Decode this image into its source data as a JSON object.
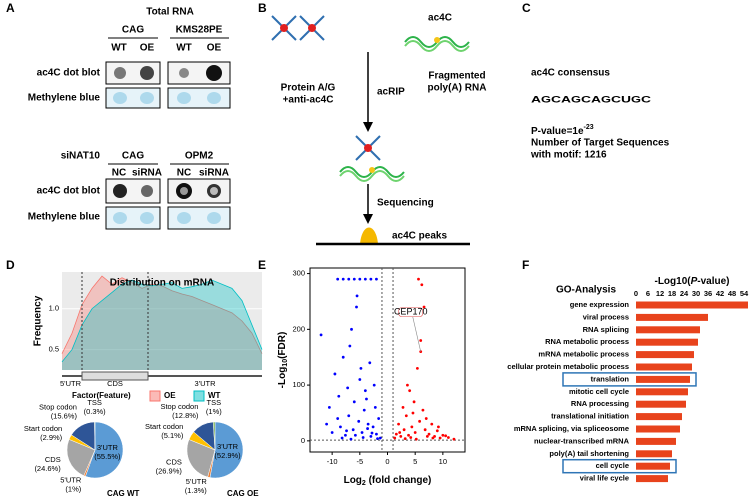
{
  "panel_labels": [
    "A",
    "B",
    "C",
    "D",
    "E",
    "F"
  ],
  "panel_a": {
    "top_title": "Total RNA",
    "groups_top": [
      "CAG",
      "KMS28PE"
    ],
    "lanes_top": [
      "WT",
      "OE",
      "WT",
      "OE"
    ],
    "rows_top": [
      "ac4C dot blot",
      "Methylene blue"
    ],
    "bottom_title": "siNAT10",
    "groups_bottom": [
      "CAG",
      "OPM2"
    ],
    "lanes_bottom": [
      "NC",
      "siRNA",
      "NC",
      "siRNA"
    ],
    "rows_bottom": [
      "ac4C dot blot",
      "Methylene blue"
    ]
  },
  "panel_b": {
    "antibody": [
      "Protein A/G",
      "+anti-ac4C"
    ],
    "modification": "ac4C",
    "rna": [
      "Fragmented",
      "poly(A) RNA"
    ],
    "step1": "acRIP",
    "step2": "Sequencing",
    "result": "ac4C peaks"
  },
  "panel_c": {
    "title": "ac4C consensus",
    "logo": [
      "A",
      "G",
      "C",
      "A",
      "G",
      "C",
      "A",
      "G",
      "C",
      "U",
      "G",
      "C"
    ],
    "p_value": "P-value=1e",
    "p_exponent": "-23",
    "count_line1": "Number of Target Sequences",
    "count_line2": "with motif: 1216"
  },
  "chart_data": [
    {
      "type": "area",
      "title": "Distribution on mRNA",
      "y_label": "Frequency",
      "legend_title": "Factor(Feature)",
      "x": [
        0,
        0.05,
        0.1,
        0.15,
        0.2,
        0.25,
        0.3,
        0.35,
        0.4,
        0.45,
        0.5,
        0.55,
        0.6,
        0.65,
        0.7,
        0.75,
        0.8,
        0.85,
        0.9,
        0.95,
        1
      ],
      "xlim": [
        0,
        1
      ],
      "ylim": [
        0.25,
        1.45
      ],
      "yticks": [
        0.5,
        {
          "value": 1,
          "label": "1.0"
        }
      ],
      "regions": [
        "5'UTR",
        "CDS",
        "3'UTR"
      ],
      "region_bounds": [
        0.1,
        0.43
      ],
      "series": [
        {
          "name": "OE",
          "color": "#f8766d",
          "values": [
            0.45,
            0.7,
            1.05,
            1.25,
            1.4,
            1.3,
            1.38,
            1.32,
            1.25,
            1.3,
            1.28,
            1.22,
            1.18,
            1.15,
            1.1,
            1.05,
            1.0,
            0.95,
            0.85,
            0.7,
            0.45
          ]
        },
        {
          "name": "WT",
          "color": "#00bfc4",
          "values": [
            0.35,
            0.5,
            0.8,
            1.0,
            1.1,
            1.2,
            1.3,
            1.35,
            1.3,
            1.28,
            1.3,
            1.32,
            1.25,
            1.27,
            1.3,
            1.35,
            1.3,
            1.25,
            1.1,
            0.8,
            0.5
          ]
        }
      ]
    },
    {
      "type": "pie",
      "title": "CAG WT",
      "categories": [
        "3'UTR",
        "5'UTR",
        "CDS",
        "Start codon",
        "Stop codon",
        "TSS"
      ],
      "values": [
        55.5,
        1,
        24.6,
        2.9,
        15.6,
        0.3
      ],
      "value_labels": [
        "(55.5%)",
        "(1%)",
        "(24.6%)",
        "(2.9%)",
        "(15.6%)",
        "(0.3%)"
      ],
      "colors": [
        "#5b9bd5",
        "#ed7d31",
        "#a5a5a5",
        "#ffc000",
        "#2e5597",
        "#70ad47"
      ]
    },
    {
      "type": "pie",
      "title": "CAG OE",
      "categories": [
        "3'UTR",
        "5'UTR",
        "CDS",
        "Start codon",
        "Stop codon",
        "TSS"
      ],
      "values": [
        52.9,
        1.3,
        26.9,
        5.1,
        12.8,
        1
      ],
      "value_labels": [
        "(52.9%)",
        "(1.3%)",
        "(26.9%)",
        "(5.1%)",
        "(12.8%)",
        "(1%)"
      ],
      "colors": [
        "#5b9bd5",
        "#ed7d31",
        "#a5a5a5",
        "#ffc000",
        "#2e5597",
        "#70ad47"
      ]
    },
    {
      "type": "scatter",
      "x_label": [
        "Log",
        "2",
        " (fold change)"
      ],
      "y_label": [
        "-Log",
        "10",
        "(FDR)"
      ],
      "xlim": [
        -14,
        14
      ],
      "ylim": [
        -20,
        310
      ],
      "xticks": [
        -10,
        -5,
        0,
        5,
        10
      ],
      "yticks": [
        0,
        100,
        200,
        300
      ],
      "vlines": [
        -1,
        1
      ],
      "hlines": [
        1.3
      ],
      "annotation": "CEP170",
      "series": [
        {
          "color": "#0000ff",
          "x": [
            -12,
            -11,
            -10.5,
            -10,
            -9.5,
            -9,
            -8.8,
            -8.5,
            -8,
            -7.6,
            -7.2,
            -7,
            -6.5,
            -6.2,
            -6,
            -5.5,
            -5.2,
            -5,
            -4.6,
            -4.2,
            -4,
            -3.5,
            -3.2,
            -3,
            -2.6,
            -2.2,
            -2,
            -1.6,
            -1.3,
            -9,
            -8,
            -7,
            -6,
            -5,
            -4,
            -3,
            -2,
            -8.2,
            -7.4,
            -6.6,
            -5.8,
            -4.4,
            -3.6,
            -2.8,
            -1.8,
            -6.8,
            -5.6,
            -4.8,
            -3.8,
            -2.4
          ],
          "values": [
            190,
            30,
            60,
            15,
            120,
            40,
            80,
            25,
            150,
            10,
            95,
            45,
            200,
            20,
            70,
            260,
            35,
            110,
            15,
            55,
            90,
            30,
            140,
            8,
            25,
            60,
            12,
            40,
            5,
            290,
            290,
            290,
            290,
            290,
            290,
            290,
            290,
            5,
            18,
            3,
            10,
            6,
            22,
            14,
            4,
            170,
            240,
            130,
            75,
            100
          ]
        },
        {
          "color": "#ff0000",
          "x": [
            1.3,
            1.6,
            2,
            2.4,
            2.8,
            3,
            3.4,
            3.8,
            4,
            4.4,
            4.8,
            5,
            5.4,
            5.8,
            6,
            6.4,
            6.8,
            7,
            7.5,
            8,
            8.5,
            9,
            9.5,
            10,
            11,
            12,
            5.6,
            6.2,
            6.6,
            3.2,
            4.2,
            5.2,
            7.2,
            8.2,
            2.2,
            3.6,
            4.6,
            9.2,
            10.5,
            6
          ],
          "values": [
            5,
            12,
            30,
            8,
            60,
            20,
            45,
            10,
            90,
            25,
            70,
            15,
            130,
            35,
            180,
            55,
            20,
            40,
            12,
            30,
            8,
            18,
            5,
            10,
            6,
            3,
            290,
            280,
            240,
            4,
            6,
            3,
            8,
            5,
            15,
            100,
            50,
            25,
            9,
            160
          ]
        }
      ]
    },
    {
      "type": "hbar",
      "title": "GO-Analysis",
      "x_label": [
        "-Log10(",
        "P",
        "-value)"
      ],
      "categories": [
        "gene expression",
        "viral process",
        "RNA splicing",
        "RNA metabolic process",
        "mRNA metabolic process",
        "cellular protein metabolic  process",
        "translation",
        "mitotic cell cycle",
        "RNA processing",
        "translational initiation",
        "mRNA splicing, via spliceosome",
        "nuclear-transcribed mRNA",
        "poly(A) tail shortening",
        "cell cycle",
        "viral life cycle"
      ],
      "values": [
        56,
        36,
        32,
        31,
        29,
        28,
        27,
        26,
        25,
        23,
        22,
        20,
        18,
        17,
        16
      ],
      "xlim": [
        0,
        57
      ],
      "xticks": [
        0,
        6,
        12,
        18,
        24,
        30,
        36,
        42,
        48,
        54
      ],
      "color": "#e8431c",
      "highlight": [
        6,
        13
      ]
    }
  ]
}
